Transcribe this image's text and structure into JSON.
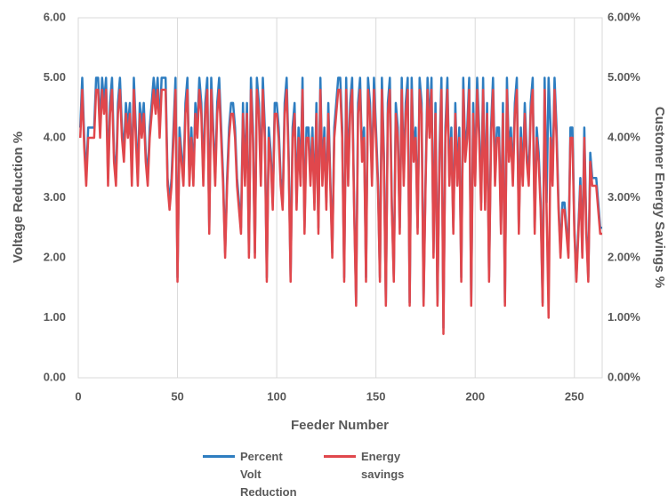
{
  "chart_data": {
    "type": "line",
    "xlabel": "Feeder Number",
    "ylabel": "Voltage Reduction %",
    "y2label": "Customer Energy Savings %",
    "xlim": [
      0,
      264
    ],
    "xticks": [
      0,
      50,
      100,
      150,
      200,
      250
    ],
    "ylim": [
      0,
      6
    ],
    "yticks": [
      {
        "value": 0,
        "label": "0.00"
      },
      {
        "value": 1,
        "label": "1.00"
      },
      {
        "value": 2,
        "label": "2.00"
      },
      {
        "value": 3,
        "label": "3.00"
      },
      {
        "value": 4,
        "label": "4.00"
      },
      {
        "value": 5,
        "label": "5.00"
      },
      {
        "value": 6,
        "label": "6.00"
      }
    ],
    "y2lim": [
      0,
      6
    ],
    "y2ticks": [
      {
        "value": 0,
        "label": "0.00%"
      },
      {
        "value": 1,
        "label": "1.00%"
      },
      {
        "value": 2,
        "label": "2.00%"
      },
      {
        "value": 3,
        "label": "3.00%"
      },
      {
        "value": 4,
        "label": "4.00%"
      },
      {
        "value": 5,
        "label": "5.00%"
      },
      {
        "value": 6,
        "label": "6.00%"
      }
    ],
    "xgrid": true,
    "legend": "bottom",
    "x": [
      1,
      2,
      3,
      4,
      5,
      6,
      7,
      8,
      9,
      10,
      11,
      12,
      13,
      14,
      15,
      16,
      17,
      18,
      19,
      20,
      21,
      22,
      23,
      24,
      25,
      26,
      27,
      28,
      29,
      30,
      31,
      32,
      33,
      34,
      35,
      36,
      37,
      38,
      39,
      40,
      41,
      42,
      43,
      44,
      45,
      46,
      47,
      48,
      49,
      50,
      51,
      52,
      53,
      54,
      55,
      56,
      57,
      58,
      59,
      60,
      61,
      62,
      63,
      64,
      65,
      66,
      67,
      68,
      69,
      70,
      71,
      72,
      73,
      74,
      75,
      76,
      77,
      78,
      79,
      80,
      81,
      82,
      83,
      84,
      85,
      86,
      87,
      88,
      89,
      90,
      91,
      92,
      93,
      94,
      95,
      96,
      97,
      98,
      99,
      100,
      101,
      102,
      103,
      104,
      105,
      106,
      107,
      108,
      109,
      110,
      111,
      112,
      113,
      114,
      115,
      116,
      117,
      118,
      119,
      120,
      121,
      122,
      123,
      124,
      125,
      126,
      127,
      128,
      129,
      130,
      131,
      132,
      133,
      134,
      135,
      136,
      137,
      138,
      139,
      140,
      141,
      142,
      143,
      144,
      145,
      146,
      147,
      148,
      149,
      150,
      151,
      152,
      153,
      154,
      155,
      156,
      157,
      158,
      159,
      160,
      161,
      162,
      163,
      164,
      165,
      166,
      167,
      168,
      169,
      170,
      171,
      172,
      173,
      174,
      175,
      176,
      177,
      178,
      179,
      180,
      181,
      182,
      183,
      184,
      185,
      186,
      187,
      188,
      189,
      190,
      191,
      192,
      193,
      194,
      195,
      196,
      197,
      198,
      199,
      200,
      201,
      202,
      203,
      204,
      205,
      206,
      207,
      208,
      209,
      210,
      211,
      212,
      213,
      214,
      215,
      216,
      217,
      218,
      219,
      220,
      221,
      222,
      223,
      224,
      225,
      226,
      227,
      228,
      229,
      230,
      231,
      232,
      233,
      234,
      235,
      236,
      237,
      238,
      239,
      240,
      241,
      242,
      243,
      244,
      245,
      246,
      247,
      248,
      249,
      250,
      251,
      252,
      253,
      254,
      255,
      256,
      257,
      258,
      259,
      260,
      261,
      262,
      263,
      264
    ],
    "series": [
      {
        "name": "Percent Volt Reduction",
        "color": "#2e7dc0",
        "values": [
          4.17,
          5.0,
          4.0,
          3.33,
          4.17,
          4.17,
          4.17,
          4.17,
          5.0,
          5.0,
          4.17,
          5.0,
          4.58,
          5.0,
          3.33,
          4.58,
          5.0,
          3.75,
          3.33,
          4.58,
          5.0,
          4.17,
          3.75,
          4.58,
          4.17,
          4.58,
          3.33,
          5.0,
          4.17,
          3.33,
          4.58,
          4.17,
          4.58,
          3.75,
          3.33,
          4.17,
          4.58,
          5.0,
          4.58,
          5.0,
          4.17,
          5.0,
          5.0,
          5.0,
          3.33,
          2.92,
          3.33,
          4.17,
          5.0,
          1.67,
          4.17,
          3.75,
          3.33,
          4.58,
          5.0,
          3.33,
          4.17,
          3.33,
          4.58,
          4.17,
          5.0,
          4.58,
          3.33,
          4.58,
          5.0,
          2.5,
          5.0,
          4.17,
          3.33,
          4.58,
          5.0,
          4.17,
          3.33,
          2.08,
          3.33,
          4.17,
          4.58,
          4.58,
          4.17,
          3.33,
          2.92,
          2.5,
          4.58,
          3.33,
          4.58,
          2.08,
          5.0,
          4.17,
          2.08,
          5.0,
          4.58,
          3.33,
          5.0,
          4.17,
          1.67,
          4.17,
          3.75,
          2.92,
          4.58,
          4.58,
          4.17,
          3.33,
          2.92,
          4.58,
          5.0,
          3.75,
          1.67,
          4.17,
          4.58,
          2.92,
          4.17,
          3.33,
          5.0,
          2.5,
          4.17,
          4.17,
          3.33,
          4.17,
          2.92,
          4.58,
          2.5,
          5.0,
          3.33,
          4.17,
          2.92,
          4.58,
          3.33,
          2.08,
          4.17,
          4.58,
          5.0,
          5.0,
          4.17,
          1.67,
          5.0,
          3.33,
          4.58,
          5.0,
          2.92,
          1.25,
          4.58,
          5.0,
          3.75,
          4.17,
          1.67,
          5.0,
          4.58,
          3.33,
          5.0,
          4.17,
          3.33,
          1.67,
          5.0,
          3.75,
          1.25,
          4.58,
          5.0,
          2.92,
          1.67,
          4.58,
          4.17,
          2.5,
          5.0,
          3.33,
          4.58,
          5.0,
          1.25,
          5.0,
          3.75,
          4.17,
          2.5,
          5.0,
          4.58,
          1.25,
          3.33,
          5.0,
          4.17,
          5.0,
          2.08,
          4.58,
          1.25,
          3.75,
          5.0,
          0.83,
          4.17,
          5.0,
          3.33,
          4.17,
          2.5,
          4.58,
          3.33,
          4.17,
          1.67,
          5.0,
          3.75,
          4.17,
          5.0,
          1.25,
          4.58,
          3.33,
          5.0,
          4.17,
          2.92,
          5.0,
          2.92,
          4.58,
          1.67,
          4.17,
          5.0,
          3.33,
          4.17,
          4.17,
          2.5,
          4.58,
          1.25,
          5.0,
          3.75,
          4.17,
          3.33,
          4.58,
          5.0,
          2.5,
          4.17,
          3.33,
          4.58,
          3.75,
          3.33,
          4.58,
          5.0,
          2.5,
          4.17,
          3.75,
          2.92,
          1.25,
          5.0,
          2.92,
          5.0,
          4.17,
          3.33,
          5.0,
          4.17,
          2.92,
          2.08,
          2.92,
          2.92,
          2.5,
          2.08,
          4.17,
          4.17,
          2.5,
          1.67,
          2.5,
          3.33,
          2.08,
          4.17,
          2.5,
          1.67,
          3.75,
          3.33,
          3.33,
          3.33,
          2.92,
          2.5,
          2.5
        ]
      },
      {
        "name": "Energy savings",
        "color": "#e0474c",
        "axis": "y2",
        "values": [
          4.0,
          4.8,
          3.84,
          3.2,
          4.0,
          4.0,
          4.0,
          4.0,
          4.8,
          4.8,
          4.0,
          4.8,
          4.4,
          4.8,
          3.2,
          4.4,
          4.8,
          3.6,
          3.2,
          4.4,
          4.8,
          4.0,
          3.6,
          4.4,
          4.0,
          4.4,
          3.2,
          4.8,
          4.0,
          3.2,
          4.4,
          4.0,
          4.4,
          3.6,
          3.2,
          4.0,
          4.4,
          4.8,
          4.4,
          4.8,
          4.0,
          4.8,
          4.8,
          4.8,
          3.2,
          2.8,
          3.2,
          4.0,
          4.8,
          1.6,
          4.0,
          3.6,
          3.2,
          4.4,
          4.8,
          3.2,
          4.0,
          3.2,
          4.4,
          4.0,
          4.8,
          4.4,
          3.2,
          4.4,
          4.8,
          2.4,
          4.8,
          4.0,
          3.2,
          4.4,
          4.8,
          4.0,
          3.2,
          2.0,
          3.2,
          4.0,
          4.4,
          4.4,
          4.0,
          3.2,
          2.8,
          2.4,
          4.4,
          3.2,
          4.4,
          2.0,
          4.8,
          4.0,
          2.0,
          4.8,
          4.4,
          3.2,
          4.8,
          4.0,
          1.6,
          4.0,
          3.6,
          2.8,
          4.4,
          4.4,
          4.0,
          3.2,
          2.8,
          4.4,
          4.8,
          3.6,
          1.6,
          4.0,
          4.4,
          2.8,
          4.0,
          3.2,
          4.8,
          2.4,
          4.0,
          4.0,
          3.2,
          4.0,
          2.8,
          4.4,
          2.4,
          4.8,
          3.2,
          4.0,
          2.8,
          4.4,
          3.2,
          2.0,
          4.0,
          4.4,
          4.8,
          4.8,
          4.0,
          1.6,
          4.8,
          3.2,
          4.4,
          4.8,
          2.8,
          1.2,
          4.4,
          4.8,
          3.6,
          4.0,
          1.6,
          4.8,
          4.4,
          3.2,
          4.8,
          4.0,
          3.2,
          1.6,
          4.8,
          3.6,
          1.2,
          4.4,
          4.8,
          2.8,
          1.6,
          4.4,
          4.0,
          2.4,
          4.8,
          3.2,
          4.4,
          4.8,
          1.2,
          4.8,
          3.6,
          4.0,
          2.4,
          4.8,
          4.4,
          1.2,
          3.2,
          4.8,
          4.0,
          4.8,
          2.0,
          4.4,
          1.2,
          3.6,
          4.8,
          0.73,
          4.0,
          4.8,
          3.2,
          4.0,
          2.4,
          4.4,
          3.2,
          4.0,
          1.6,
          4.8,
          3.6,
          4.0,
          4.8,
          1.2,
          4.4,
          3.2,
          4.8,
          4.0,
          2.8,
          4.8,
          2.8,
          4.4,
          1.6,
          4.0,
          4.8,
          3.2,
          4.0,
          4.0,
          2.4,
          4.4,
          1.2,
          4.8,
          3.6,
          4.0,
          3.2,
          4.4,
          4.8,
          2.4,
          4.0,
          3.2,
          4.4,
          3.6,
          3.2,
          4.4,
          4.8,
          2.4,
          4.0,
          3.6,
          2.8,
          1.2,
          4.8,
          2.8,
          1.0,
          4.0,
          3.2,
          4.8,
          4.0,
          2.8,
          2.0,
          2.8,
          2.8,
          2.4,
          2.0,
          4.0,
          4.0,
          2.4,
          1.6,
          2.4,
          3.2,
          2.0,
          4.0,
          2.4,
          1.6,
          3.6,
          3.2,
          3.2,
          3.2,
          2.8,
          2.4,
          2.4
        ]
      }
    ]
  }
}
